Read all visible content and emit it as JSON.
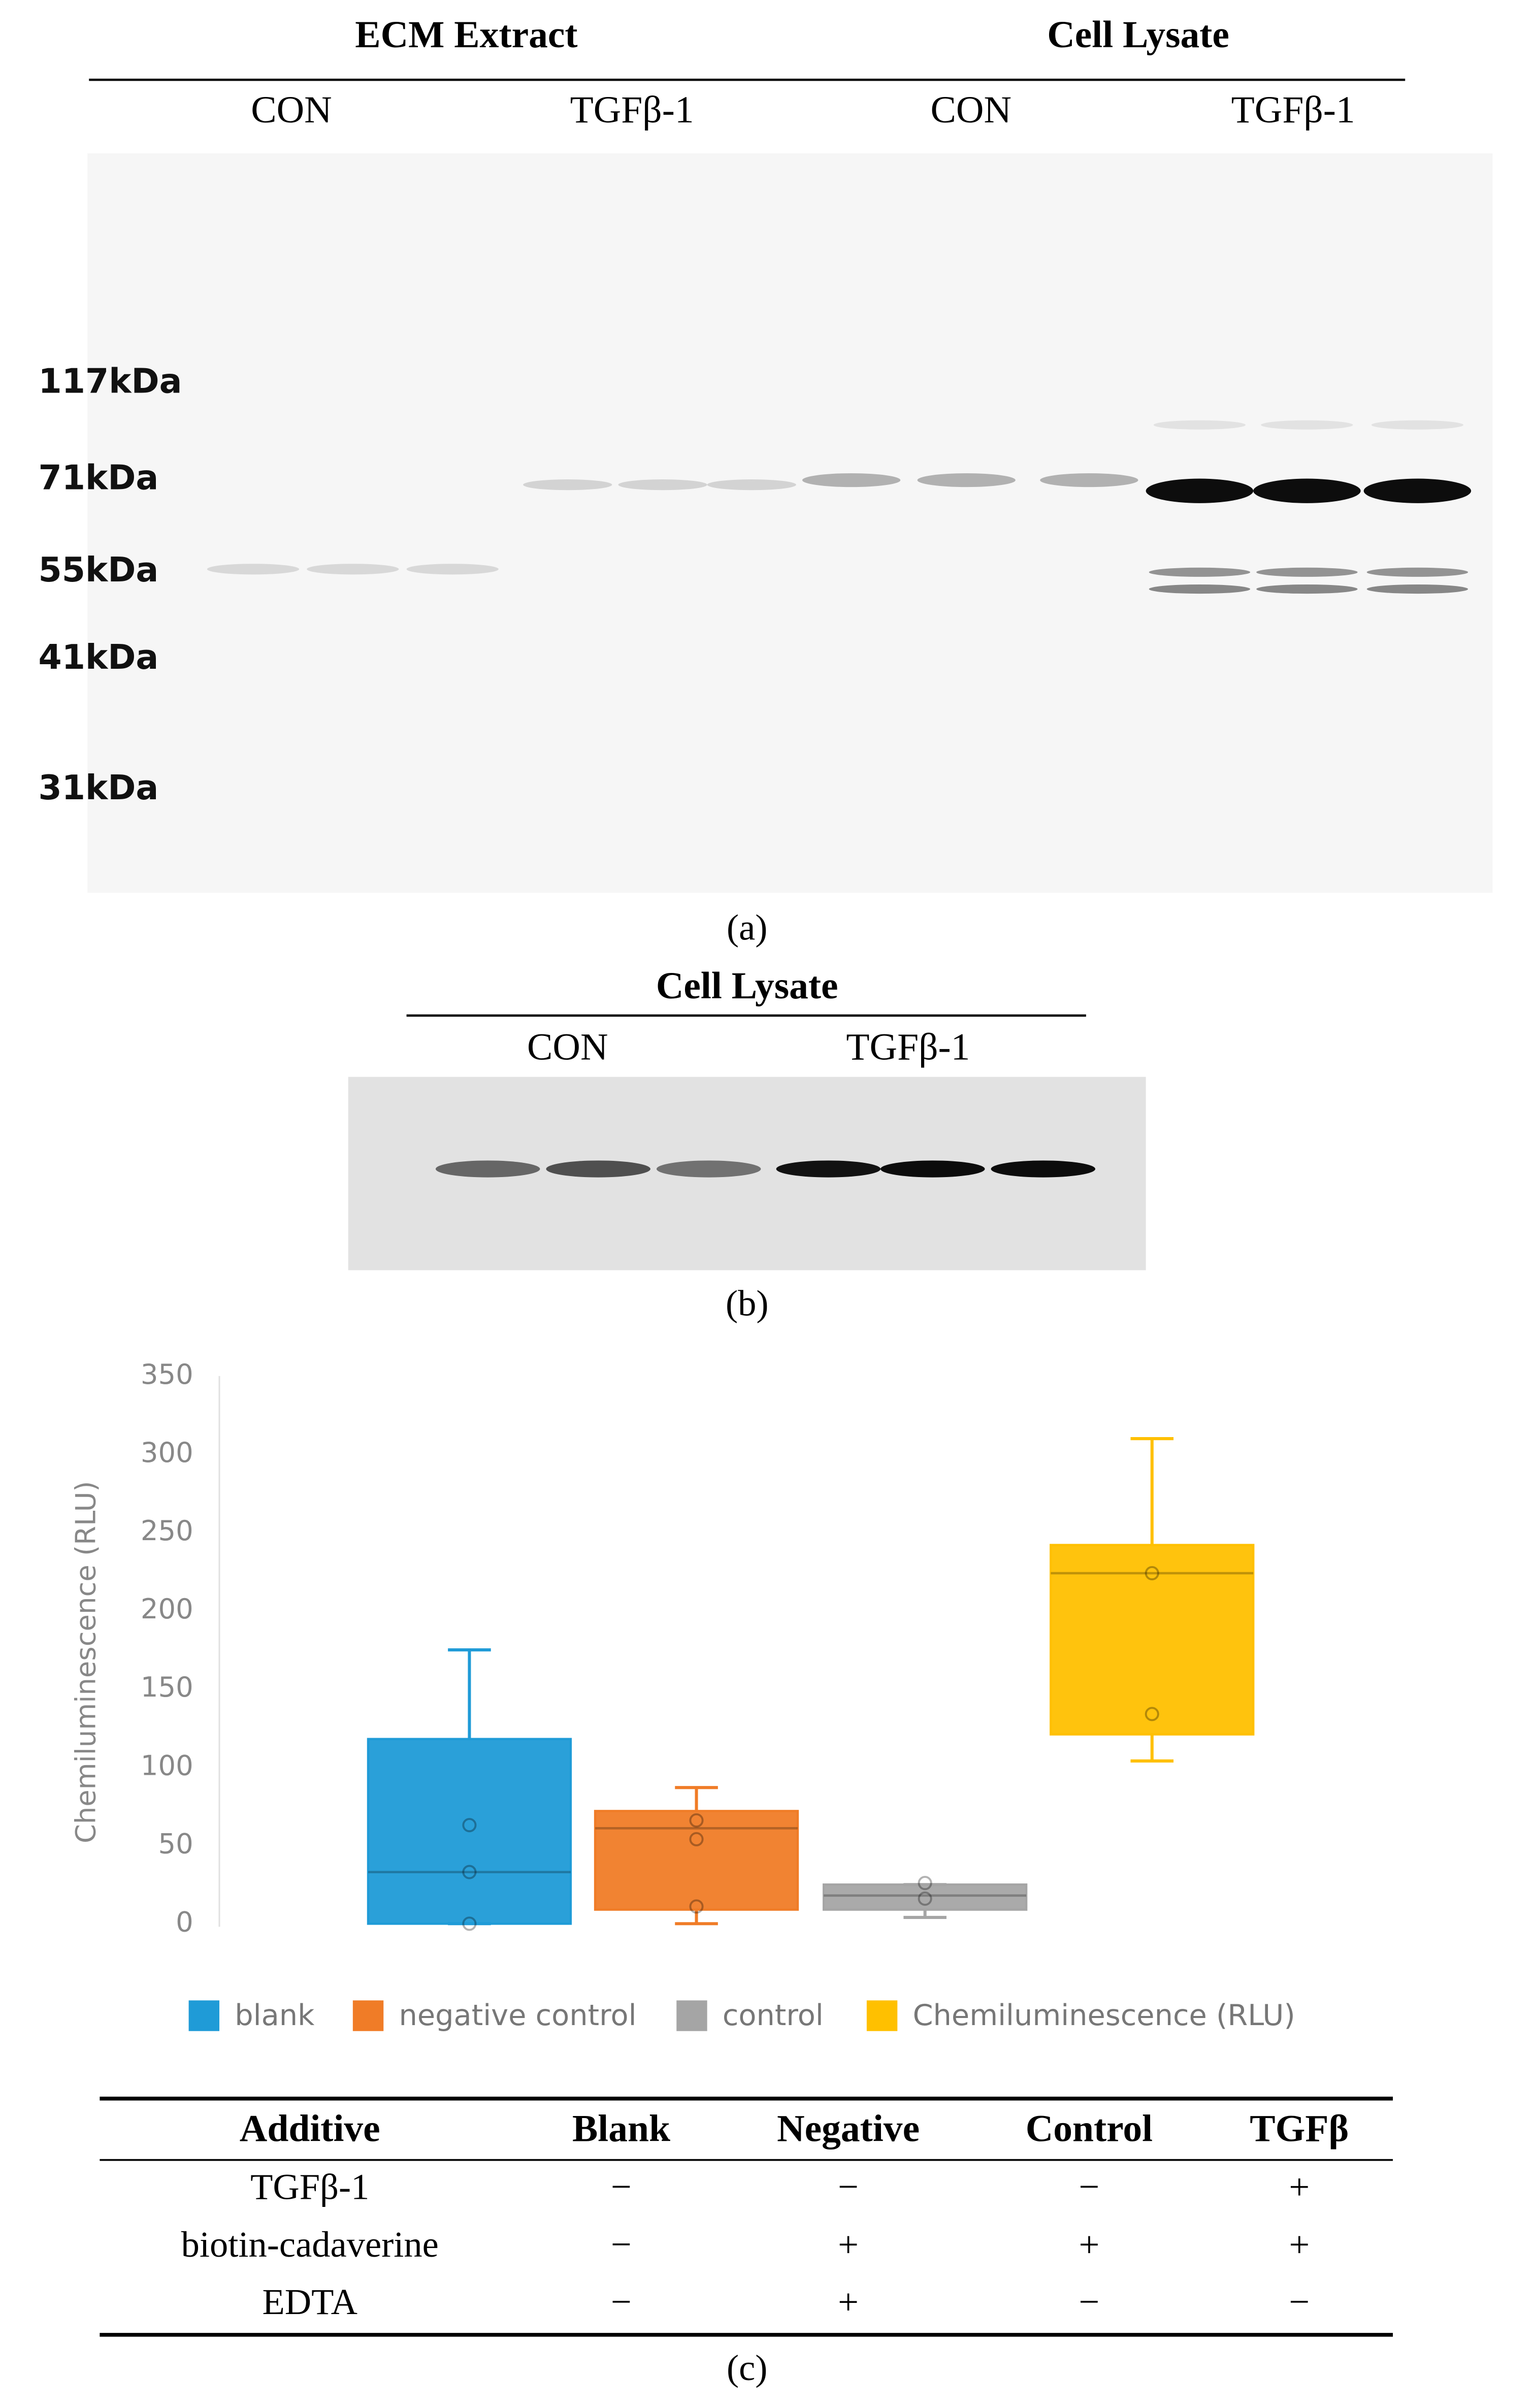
{
  "panel_a": {
    "headers": [
      "ECM Extract",
      "Cell Lysate"
    ],
    "lanes": [
      "CON",
      "TGFβ-1",
      "CON",
      "TGFβ-1"
    ],
    "markers": [
      "117kDa",
      "71kDa",
      "55kDa",
      "41kDa",
      "31kDa"
    ],
    "caption": "(a)"
  },
  "panel_b": {
    "header": "Cell Lysate",
    "lanes": [
      "CON",
      "TGFβ-1"
    ],
    "caption": "(b)"
  },
  "chart_data": {
    "type": "box",
    "y_label": "Chemiluminescence (RLU)",
    "ylim": [
      0,
      350
    ],
    "yticks": [
      0,
      50,
      100,
      150,
      200,
      250,
      300,
      350
    ],
    "series": [
      {
        "name": "blank",
        "color": "#1f9bd7",
        "whisker_low": 0,
        "q1": 0,
        "median": 33,
        "q3": 118,
        "whisker_high": 175,
        "points": [
          0,
          33,
          63
        ]
      },
      {
        "name": "negative control",
        "color": "#f07c27",
        "whisker_low": 0,
        "q1": 9,
        "median": 61,
        "q3": 72,
        "whisker_high": 87,
        "points": [
          11,
          54,
          66
        ]
      },
      {
        "name": "control",
        "color": "#a5a5a5",
        "whisker_low": 4,
        "q1": 9,
        "median": 18,
        "q3": 25,
        "whisker_high": 25,
        "points": [
          16,
          26
        ]
      },
      {
        "name": "Chemiluminescence (RLU)",
        "color": "#ffc000",
        "whisker_low": 104,
        "q1": 121,
        "median": 224,
        "q3": 242,
        "whisker_high": 310,
        "points": [
          134,
          224
        ]
      }
    ]
  },
  "table": {
    "header": [
      "Additive",
      "Blank",
      "Negative",
      "Control",
      "TGFβ"
    ],
    "rows": [
      [
        "TGFβ-1",
        "−",
        "−",
        "−",
        "+"
      ],
      [
        "biotin-cadaverine",
        "−",
        "+",
        "+",
        "+"
      ],
      [
        "EDTA",
        "−",
        "+",
        "−",
        "−"
      ]
    ],
    "caption": "(c)"
  }
}
